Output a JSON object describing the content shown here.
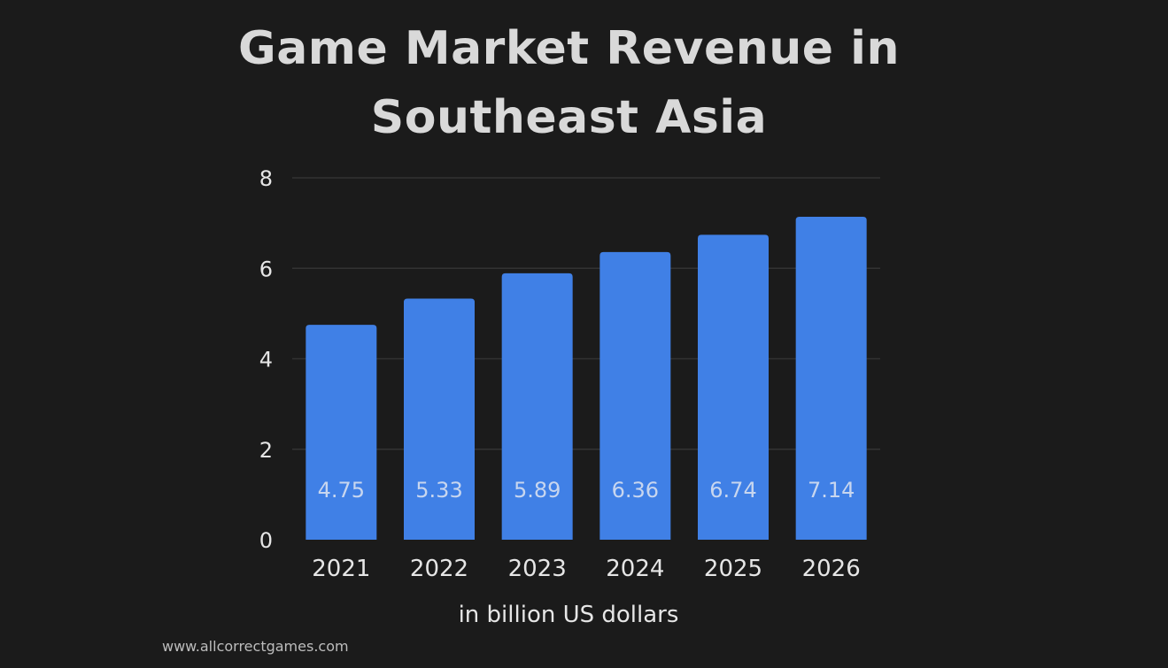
{
  "chart_data": {
    "type": "bar",
    "title_lines": [
      "Game Market Revenue in",
      "Southeast Asia"
    ],
    "categories": [
      "2021",
      "2022",
      "2023",
      "2024",
      "2025",
      "2026"
    ],
    "values": [
      4.75,
      5.33,
      5.89,
      6.36,
      6.74,
      7.14
    ],
    "value_labels": [
      "4.75",
      "5.33",
      "5.89",
      "6.36",
      "6.74",
      "7.14"
    ],
    "xlabel": "in billion US dollars",
    "ylabel": "",
    "ylim": [
      0,
      8
    ],
    "yticks": [
      0,
      2,
      4,
      6,
      8
    ],
    "grid": true,
    "legend": "none",
    "bar_color": "#4080e6"
  },
  "footer": {
    "source": "www.allcorrectgames.com"
  },
  "colors": {
    "background": "#1b1b1b",
    "grid": "#333333",
    "text": "#e6e6e6"
  }
}
